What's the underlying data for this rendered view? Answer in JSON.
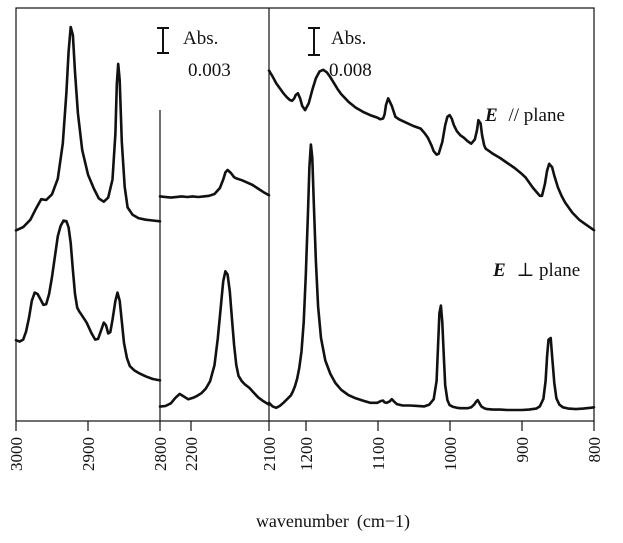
{
  "chart_data": {
    "type": "line",
    "title": "",
    "xlabel": "wavenumber",
    "xlabel_unit": "(cm−1)",
    "panels": [
      {
        "id": "ch",
        "xlim": [
          3000,
          2800
        ],
        "ticks": [
          "3000",
          "2900",
          "2800"
        ],
        "scale_bar": {
          "label": "Abs.",
          "value": "0.003"
        }
      },
      {
        "id": "cn",
        "xlim": [
          2250,
          2150
        ],
        "ticks": [
          "2200"
        ],
        "scale_bar": null
      },
      {
        "id": "fingerprint",
        "xlim": [
          1250,
          800
        ],
        "ticks": [
          "2100",
          "1200",
          "1100",
          "1000",
          "900",
          "800"
        ],
        "scale_bar": {
          "label": "Abs.",
          "value": "0.008"
        }
      }
    ],
    "series": [
      {
        "name": "E // plane",
        "label_bold": "E",
        "label_rest": "// plane",
        "panel_ch": {
          "x": [
            3000,
            2990,
            2980,
            2972,
            2965,
            2958,
            2950,
            2942,
            2935,
            2930,
            2927,
            2924,
            2921,
            2918,
            2914,
            2908,
            2900,
            2892,
            2885,
            2878,
            2872,
            2866,
            2862,
            2860,
            2858,
            2856,
            2853,
            2849,
            2845,
            2838,
            2830,
            2820,
            2810,
            2800
          ],
          "y": [
            0.2,
            0.6,
            1.5,
            2.9,
            4.0,
            3.9,
            4.6,
            6.5,
            10.8,
            17,
            22,
            25,
            24,
            19.5,
            14.5,
            10,
            7,
            5.3,
            4.1,
            3.7,
            4.2,
            6.4,
            12,
            18,
            20.5,
            18.5,
            11,
            5.5,
            3.0,
            2.1,
            1.7,
            1.5,
            1.4,
            1.3
          ]
        },
        "panel_cn": {
          "x": [
            2250,
            2240,
            2230,
            2225,
            2220,
            2215,
            2210,
            2205,
            2200,
            2195,
            2192,
            2190,
            2188,
            2185,
            2182,
            2180,
            2175,
            2170,
            2165,
            2160,
            2155,
            2150
          ],
          "y": [
            1.6,
            1.4,
            1.6,
            1.5,
            1.6,
            1.5,
            1.6,
            1.7,
            2.0,
            3.0,
            4.4,
            5.6,
            6.0,
            5.5,
            4.8,
            4.6,
            4.3,
            3.9,
            3.5,
            2.9,
            2.3,
            1.8
          ]
        },
        "panel_fingerprint": {
          "x": [
            1250,
            1245,
            1240,
            1235,
            1230,
            1225,
            1221,
            1218,
            1215,
            1213,
            1210,
            1207,
            1204,
            1200,
            1195,
            1190,
            1185,
            1180,
            1175,
            1170,
            1165,
            1160,
            1155,
            1150,
            1140,
            1130,
            1120,
            1110,
            1100,
            1096,
            1092,
            1090,
            1088,
            1085,
            1080,
            1075,
            1070,
            1060,
            1050,
            1040,
            1035,
            1030,
            1025,
            1022,
            1018,
            1015,
            1010,
            1006,
            1003,
            1000,
            997,
            994,
            990,
            985,
            980,
            975,
            970,
            965,
            962,
            960,
            957,
            955,
            952,
            950,
            945,
            940,
            930,
            920,
            910,
            900,
            895,
            890,
            885,
            880,
            875,
            872,
            868,
            865,
            862,
            858,
            855,
            850,
            845,
            840,
            830,
            820,
            810,
            800
          ],
          "y": [
            18.5,
            17.8,
            17.0,
            16.4,
            15.8,
            15.3,
            15.0,
            14.9,
            15.2,
            15.6,
            15.8,
            15.2,
            14.3,
            13.8,
            14.6,
            16.2,
            17.6,
            18.4,
            18.6,
            18.3,
            17.7,
            17.0,
            16.3,
            15.7,
            14.8,
            14.1,
            13.6,
            13.2,
            12.9,
            12.7,
            12.8,
            13.3,
            14.4,
            15.2,
            14.3,
            13.0,
            12.7,
            12.3,
            11.9,
            11.6,
            11.1,
            10.5,
            9.6,
            8.9,
            8.5,
            8.6,
            10.0,
            12.0,
            13.0,
            13.2,
            12.8,
            12.0,
            11.3,
            10.8,
            10.5,
            10.1,
            9.8,
            10.3,
            11.4,
            12.6,
            12.2,
            10.8,
            9.6,
            9.2,
            8.9,
            8.6,
            8.1,
            7.5,
            6.9,
            6.2,
            5.8,
            5.2,
            4.6,
            4.1,
            3.6,
            3.6,
            5.0,
            6.6,
            7.4,
            7.0,
            6.0,
            4.6,
            3.6,
            2.8,
            1.6,
            0.7,
            0.1,
            -0.5
          ]
        }
      },
      {
        "name": "E ⊥ plane",
        "label_bold": "E",
        "label_rest": "⊥ plane",
        "panel_ch": {
          "x": [
            3000,
            2995,
            2990,
            2986,
            2982,
            2978,
            2974,
            2970,
            2966,
            2962,
            2958,
            2954,
            2950,
            2946,
            2942,
            2938,
            2934,
            2930,
            2927,
            2924,
            2921,
            2918,
            2915,
            2912,
            2908,
            2902,
            2895,
            2890,
            2886,
            2882,
            2878,
            2875,
            2872,
            2869,
            2866,
            2862,
            2859,
            2856,
            2853,
            2850,
            2846,
            2842,
            2836,
            2828,
            2820,
            2810,
            2800
          ],
          "y": [
            8.2,
            8.0,
            8.3,
            9.5,
            11.5,
            14.0,
            15.2,
            15.0,
            14.2,
            13.4,
            13.5,
            15.0,
            17.5,
            20.5,
            23.5,
            25.0,
            25.8,
            25.7,
            24.8,
            22.5,
            18.5,
            15.0,
            13.0,
            12.4,
            11.8,
            10.8,
            9.2,
            8.3,
            8.4,
            9.6,
            10.8,
            10.4,
            9.2,
            9.4,
            11.2,
            14.0,
            15.2,
            14.0,
            11.0,
            7.8,
            5.6,
            4.4,
            3.8,
            3.3,
            2.9,
            2.5,
            2.3
          ]
        },
        "panel_cn": {
          "x": [
            2250,
            2245,
            2240,
            2236,
            2232,
            2228,
            2224,
            2220,
            2216,
            2212,
            2208,
            2204,
            2200,
            2197,
            2194,
            2192,
            2190,
            2188,
            2186,
            2184,
            2182,
            2180,
            2178,
            2175,
            2172,
            2168,
            2164,
            2160,
            2156,
            2152,
            2150
          ],
          "y": [
            0.8,
            0.9,
            1.3,
            2.1,
            2.7,
            2.3,
            1.9,
            2.1,
            2.4,
            2.8,
            3.5,
            4.6,
            7.0,
            11.0,
            16.0,
            19.5,
            21.0,
            20.5,
            18.0,
            14.0,
            10.0,
            7.0,
            5.4,
            4.6,
            4.1,
            3.6,
            2.9,
            2.2,
            1.7,
            1.3,
            1.1
          ]
        },
        "panel_fingerprint": {
          "x": [
            1250,
            1245,
            1240,
            1235,
            1230,
            1225,
            1220,
            1217,
            1214,
            1211,
            1208,
            1205,
            1202,
            1199,
            1196,
            1194,
            1192,
            1190,
            1188,
            1185,
            1182,
            1178,
            1172,
            1165,
            1158,
            1150,
            1140,
            1130,
            1120,
            1110,
            1100,
            1095,
            1092,
            1090,
            1087,
            1083,
            1080,
            1077,
            1073,
            1065,
            1055,
            1045,
            1035,
            1028,
            1022,
            1018,
            1016,
            1014,
            1012,
            1010,
            1008,
            1006,
            1003,
            1000,
            995,
            990,
            985,
            980,
            975,
            970,
            966,
            963,
            961,
            959,
            956,
            952,
            948,
            940,
            930,
            920,
            910,
            900,
            890,
            880,
            875,
            870,
            867,
            865,
            863,
            860,
            858,
            855,
            852,
            848,
            843,
            835,
            825,
            815,
            805,
            800
          ],
          "y": [
            1.6,
            0.8,
            0.5,
            0.9,
            1.6,
            2.4,
            3.2,
            4.1,
            5.3,
            7.0,
            9.4,
            13.0,
            19.5,
            30.0,
            44.0,
            54.0,
            59.0,
            56.0,
            46.0,
            33.0,
            23.0,
            16.0,
            11.0,
            8.0,
            6.0,
            4.5,
            3.3,
            2.6,
            2.1,
            1.6,
            1.6,
            2.0,
            2.1,
            1.7,
            1.6,
            1.9,
            2.4,
            1.9,
            1.3,
            1.0,
            1.0,
            0.9,
            0.8,
            1.2,
            2.4,
            6.5,
            14.0,
            21.5,
            23.2,
            19.5,
            12.0,
            5.5,
            2.2,
            1.1,
            0.7,
            0.5,
            0.4,
            0.4,
            0.4,
            0.6,
            1.2,
            1.9,
            2.2,
            1.6,
            0.8,
            0.4,
            0.2,
            0.1,
            0.1,
            0.0,
            0.0,
            0.0,
            0.1,
            0.3,
            0.8,
            2.5,
            6.5,
            12.0,
            15.6,
            16.0,
            12.0,
            6.0,
            2.6,
            1.2,
            0.6,
            0.3,
            0.2,
            0.3,
            0.5,
            0.6
          ]
        }
      }
    ],
    "legend": "none",
    "grid": false
  }
}
